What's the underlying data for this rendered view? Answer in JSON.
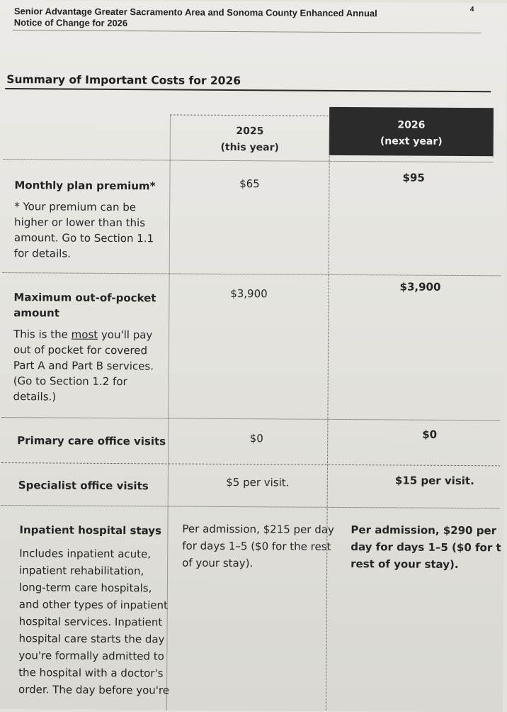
{
  "header": {
    "title_line1": "Senior Advantage Greater Sacramento Area and Sonoma County Enhanced Annual",
    "title_line2": "Notice of Change for 2026",
    "page_number": "4"
  },
  "section_title": "Summary of Important Costs for 2026",
  "columns": {
    "y2025_line1": "2025",
    "y2025_line2": "(this year)",
    "y2026_line1": "2026",
    "y2026_line2": "(next year)"
  },
  "rows": {
    "premium": {
      "label": "Monthly plan premium*",
      "note_lines": [
        "* Your premium can be",
        "higher or lower than this",
        "amount. Go to Section 1.1",
        "for details."
      ],
      "v2025": "$65",
      "v2026": "$95"
    },
    "moop": {
      "label_line1": "Maximum out-of-pocket",
      "label_line2": "amount",
      "desc_pre": "This is the ",
      "desc_most": "most",
      "desc_post": " you'll pay",
      "desc_lines": [
        "out of pocket for covered",
        "Part A and Part B services.",
        "(Go to Section 1.2 for",
        "details.)"
      ],
      "v2025": "$3,900",
      "v2026": "$3,900"
    },
    "primary": {
      "label": "Primary care office visits",
      "v2025": "$0",
      "v2026": "$0"
    },
    "specialist": {
      "label": "Specialist office visits",
      "v2025": "$5 per visit.",
      "v2026": "$15 per visit."
    },
    "inpatient": {
      "label": "Inpatient hospital stays",
      "desc_lines": [
        "Includes inpatient acute,",
        "inpatient rehabilitation,",
        "long-term care hospitals,",
        "and other types of inpatient",
        "hospital services. Inpatient",
        "hospital care starts the day",
        "you're formally admitted to",
        "the hospital with a doctor's",
        "order. The day before you're"
      ],
      "v2025_lines": [
        "Per admission, $215 per day",
        "for days 1–5 ($0 for the rest",
        "of your stay)."
      ],
      "v2026_lines": [
        "Per admission, $290 per",
        "day for days 1–5 ($0 for t",
        "rest of your stay)."
      ]
    }
  }
}
